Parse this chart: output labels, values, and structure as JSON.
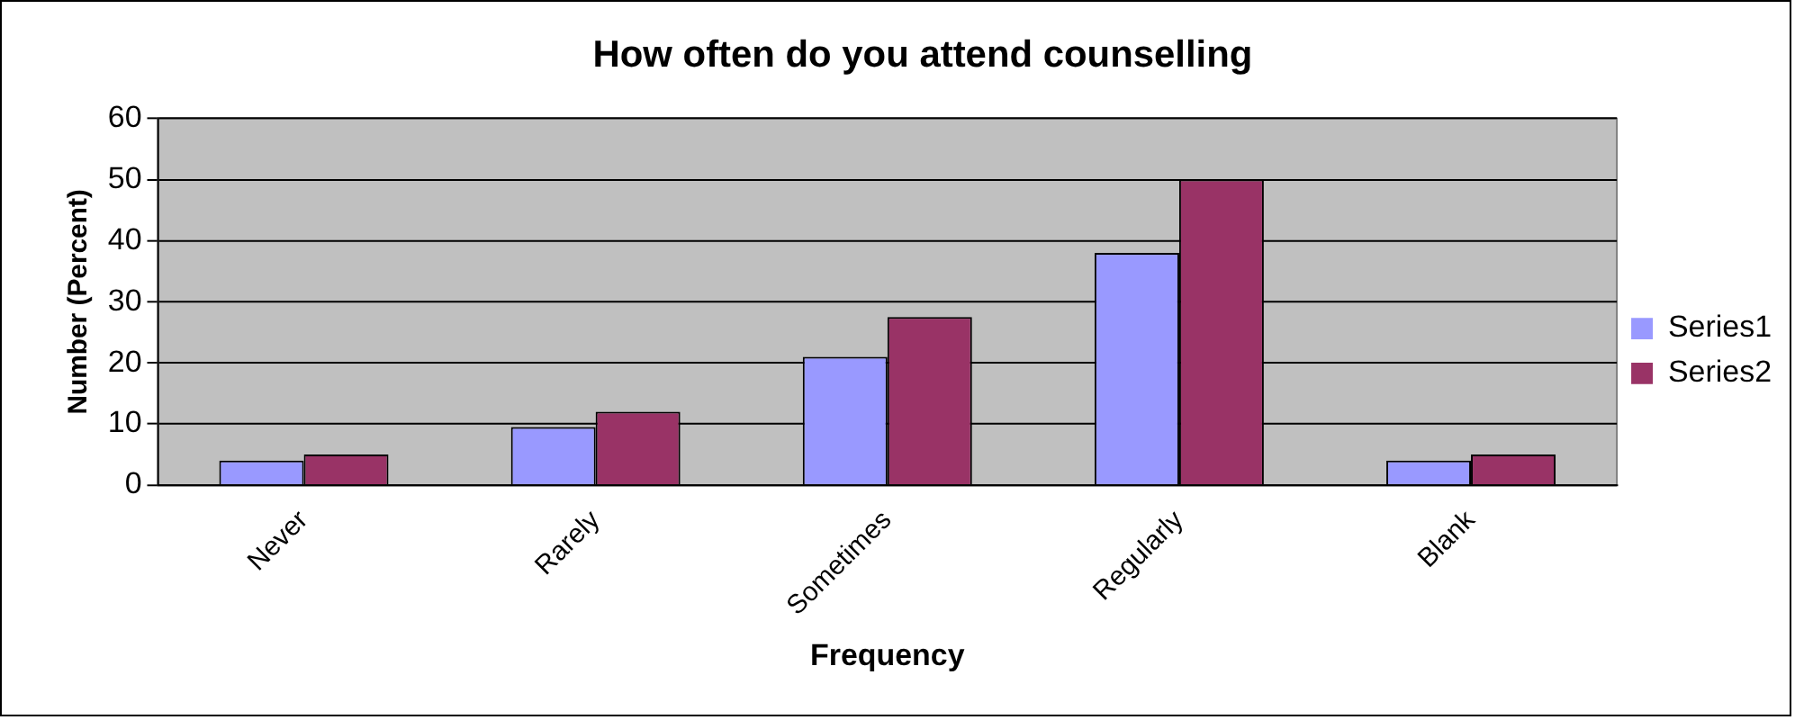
{
  "chart_data": {
    "type": "bar",
    "title": "How often do you attend counselling",
    "xlabel": "Frequency",
    "ylabel": "Number (Percent)",
    "categories": [
      "Never",
      "Rarely",
      "Sometimes",
      "Regularly",
      "Blank"
    ],
    "series": [
      {
        "name": "Series1",
        "color": "#9999ff",
        "values": [
          4,
          9.5,
          21,
          38,
          4
        ]
      },
      {
        "name": "Series2",
        "color": "#993366",
        "values": [
          5,
          12,
          27.5,
          50,
          5
        ]
      }
    ],
    "ylim": [
      0,
      60
    ],
    "yticks": [
      0,
      10,
      20,
      30,
      40,
      50,
      60
    ],
    "grid": "y",
    "legend": "right"
  }
}
